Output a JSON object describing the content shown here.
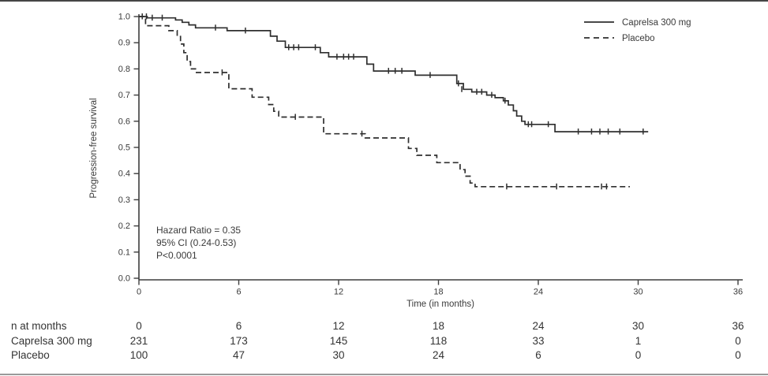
{
  "colors": {
    "background": "#ffffff",
    "ink": "#3a3a3a",
    "curve": "#2f2f2f",
    "axis": "#3d3d3d",
    "top_edge_line": "#454545",
    "bottom_edge_line": "#9a9a9a"
  },
  "chart_data": {
    "type": "line",
    "subtype": "kaplan-meier-step",
    "title": "",
    "xlabel": "Time (in months)",
    "ylabel": "Progression-free survival",
    "xlim": [
      0,
      36
    ],
    "ylim": [
      0.0,
      1.0
    ],
    "xticks": [
      0,
      6,
      12,
      18,
      24,
      30,
      36
    ],
    "yticks": [
      0.0,
      0.1,
      0.2,
      0.3,
      0.4,
      0.5,
      0.6,
      0.7,
      0.8,
      0.9,
      1.0
    ],
    "grid": false,
    "legend_position": "top-right",
    "annotation_lines": [
      "Hazard Ratio = 0.35",
      "95% CI (0.24-0.53)",
      "P<0.0001"
    ],
    "series": [
      {
        "name": "Caprelsa 300 mg",
        "line_style": "solid",
        "color": "#2f2f2f",
        "steps": [
          [
            0,
            1.0
          ],
          [
            0.5,
            0.995
          ],
          [
            2.2,
            0.987
          ],
          [
            2.6,
            0.978
          ],
          [
            3.0,
            0.968
          ],
          [
            3.4,
            0.957
          ],
          [
            5.3,
            0.946
          ],
          [
            7.9,
            0.925
          ],
          [
            8.3,
            0.906
          ],
          [
            8.8,
            0.882
          ],
          [
            10.9,
            0.862
          ],
          [
            11.4,
            0.846
          ],
          [
            13.7,
            0.818
          ],
          [
            14.1,
            0.792
          ],
          [
            16.6,
            0.776
          ],
          [
            19.1,
            0.744
          ],
          [
            19.5,
            0.722
          ],
          [
            20.0,
            0.712
          ],
          [
            20.9,
            0.7
          ],
          [
            21.4,
            0.69
          ],
          [
            21.9,
            0.678
          ],
          [
            22.2,
            0.662
          ],
          [
            22.5,
            0.64
          ],
          [
            22.7,
            0.62
          ],
          [
            23.0,
            0.6
          ],
          [
            23.2,
            0.588
          ],
          [
            25.0,
            0.56
          ]
        ],
        "end_time": 30.6,
        "censor_marks": [
          [
            0.2,
            1.0
          ],
          [
            0.45,
            1.0
          ],
          [
            0.8,
            0.995
          ],
          [
            1.4,
            0.995
          ],
          [
            4.6,
            0.957
          ],
          [
            6.4,
            0.946
          ],
          [
            9.0,
            0.882
          ],
          [
            9.3,
            0.882
          ],
          [
            9.6,
            0.882
          ],
          [
            10.6,
            0.882
          ],
          [
            11.9,
            0.846
          ],
          [
            12.3,
            0.846
          ],
          [
            12.6,
            0.846
          ],
          [
            12.9,
            0.846
          ],
          [
            15.0,
            0.792
          ],
          [
            15.4,
            0.792
          ],
          [
            15.8,
            0.792
          ],
          [
            17.5,
            0.776
          ],
          [
            19.2,
            0.744
          ],
          [
            19.4,
            0.722
          ],
          [
            20.3,
            0.712
          ],
          [
            20.6,
            0.712
          ],
          [
            21.2,
            0.7
          ],
          [
            22.0,
            0.678
          ],
          [
            23.4,
            0.588
          ],
          [
            23.6,
            0.588
          ],
          [
            24.6,
            0.588
          ],
          [
            26.4,
            0.56
          ],
          [
            27.2,
            0.56
          ],
          [
            27.7,
            0.56
          ],
          [
            28.2,
            0.56
          ],
          [
            28.9,
            0.56
          ],
          [
            30.3,
            0.56
          ]
        ]
      },
      {
        "name": "Placebo",
        "line_style": "dashed",
        "color": "#2f2f2f",
        "steps": [
          [
            0,
            1.0
          ],
          [
            0.4,
            0.965
          ],
          [
            1.8,
            0.946
          ],
          [
            2.3,
            0.924
          ],
          [
            2.5,
            0.895
          ],
          [
            2.7,
            0.862
          ],
          [
            2.9,
            0.828
          ],
          [
            3.1,
            0.8
          ],
          [
            3.4,
            0.786
          ],
          [
            5.4,
            0.724
          ],
          [
            6.8,
            0.692
          ],
          [
            7.8,
            0.664
          ],
          [
            8.1,
            0.638
          ],
          [
            8.4,
            0.616
          ],
          [
            11.1,
            0.552
          ],
          [
            13.6,
            0.536
          ],
          [
            16.2,
            0.496
          ],
          [
            16.7,
            0.47
          ],
          [
            17.9,
            0.442
          ],
          [
            19.3,
            0.415
          ],
          [
            19.6,
            0.39
          ],
          [
            19.9,
            0.364
          ],
          [
            20.2,
            0.35
          ]
        ],
        "end_time": 29.5,
        "censor_marks": [
          [
            5.0,
            0.786
          ],
          [
            9.4,
            0.616
          ],
          [
            13.4,
            0.552
          ],
          [
            22.1,
            0.35
          ],
          [
            25.1,
            0.35
          ],
          [
            27.8,
            0.35
          ],
          [
            28.1,
            0.35
          ]
        ]
      }
    ],
    "risk_table": {
      "header": {
        "label": "n at months",
        "values": [
          "0",
          "6",
          "12",
          "18",
          "24",
          "30",
          "36"
        ]
      },
      "rows": [
        {
          "label": "Caprelsa 300 mg",
          "values": [
            "231",
            "173",
            "145",
            "118",
            "33",
            "1",
            "0"
          ]
        },
        {
          "label": "Placebo",
          "values": [
            "100",
            "47",
            "30",
            "24",
            "6",
            "0",
            "0"
          ]
        }
      ]
    }
  }
}
